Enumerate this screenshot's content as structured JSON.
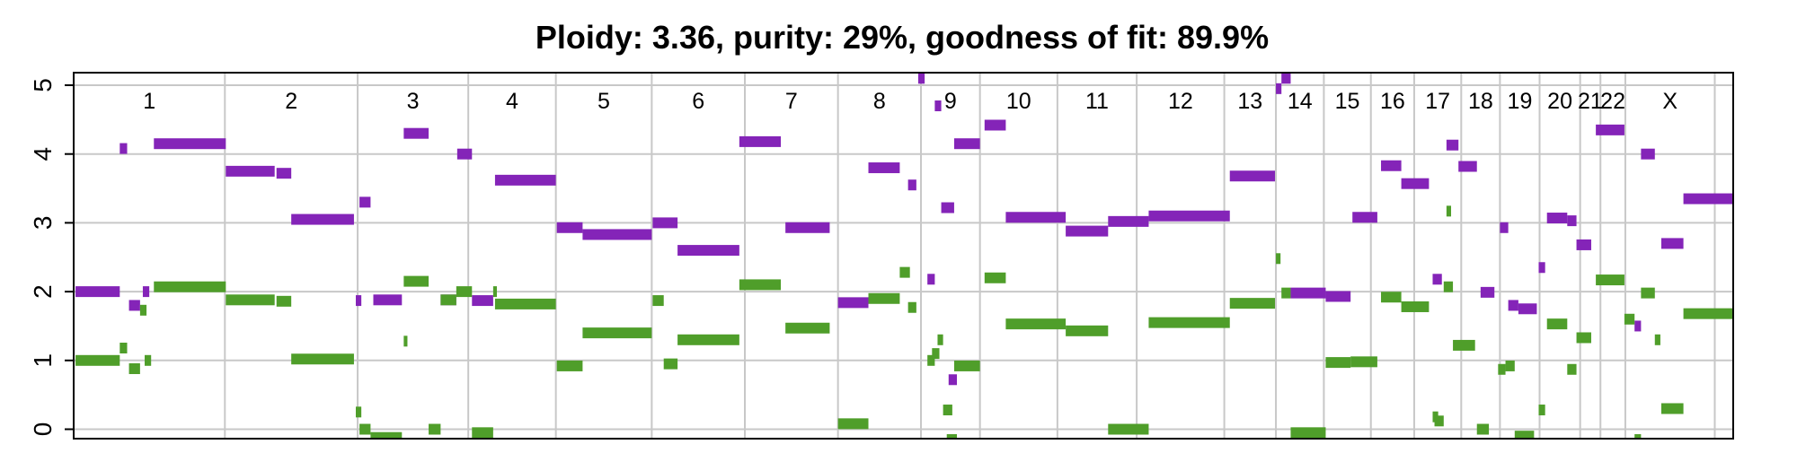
{
  "chart_data": {
    "type": "scatter",
    "title": "Ploidy: 3.36, purity: 29%, goodness of fit: 89.9%",
    "xlabel": "",
    "ylabel": "",
    "ylim": [
      -0.15,
      5.1
    ],
    "yticks": [
      "0",
      "1",
      "2",
      "3",
      "4",
      "5"
    ],
    "grid": true,
    "legend": "none",
    "colors": {
      "major": "#8424b8",
      "minor": "#4f9e2a",
      "grid": "#c8c8c8",
      "frame": "#000000"
    },
    "chromosomes": [
      {
        "name": "1",
        "start": 0,
        "end": 164
      },
      {
        "name": "2",
        "start": 164,
        "end": 308
      },
      {
        "name": "3",
        "start": 308,
        "end": 428
      },
      {
        "name": "4",
        "start": 428,
        "end": 523
      },
      {
        "name": "5",
        "start": 523,
        "end": 627
      },
      {
        "name": "6",
        "start": 627,
        "end": 728
      },
      {
        "name": "7",
        "start": 728,
        "end": 829
      },
      {
        "name": "8",
        "start": 829,
        "end": 919
      },
      {
        "name": "9",
        "start": 919,
        "end": 983
      },
      {
        "name": "10",
        "start": 983,
        "end": 1067
      },
      {
        "name": "11",
        "start": 1067,
        "end": 1153
      },
      {
        "name": "12",
        "start": 1153,
        "end": 1248
      },
      {
        "name": "13",
        "start": 1248,
        "end": 1304
      },
      {
        "name": "14",
        "start": 1304,
        "end": 1356
      },
      {
        "name": "15",
        "start": 1356,
        "end": 1407
      },
      {
        "name": "16",
        "start": 1407,
        "end": 1454
      },
      {
        "name": "17",
        "start": 1454,
        "end": 1505
      },
      {
        "name": "18",
        "start": 1505,
        "end": 1547
      },
      {
        "name": "19",
        "start": 1547,
        "end": 1590
      },
      {
        "name": "20",
        "start": 1590,
        "end": 1634
      },
      {
        "name": "21",
        "start": 1634,
        "end": 1656
      },
      {
        "name": "22",
        "start": 1656,
        "end": 1683
      },
      {
        "name": "X",
        "start": 1683,
        "end": 1780
      }
    ],
    "series": [
      {
        "name": "",
        "role": "major",
        "segments": [
          [
            2,
            50,
            2.0
          ],
          [
            50,
            58,
            4.08
          ],
          [
            60,
            72,
            1.8
          ],
          [
            75,
            82,
            2.0
          ],
          [
            87,
            165,
            4.15
          ],
          [
            165,
            218,
            3.75
          ],
          [
            220,
            236,
            3.72
          ],
          [
            236,
            304,
            3.05
          ],
          [
            306,
            312,
            1.87
          ],
          [
            310,
            322,
            3.3
          ],
          [
            325,
            356,
            1.88
          ],
          [
            358,
            385,
            4.3
          ],
          [
            398,
            415,
            1.88
          ],
          [
            416,
            432,
            4.0
          ],
          [
            432,
            455,
            1.87
          ],
          [
            457,
            523,
            3.62
          ],
          [
            524,
            552,
            2.93
          ],
          [
            552,
            627,
            2.83
          ],
          [
            628,
            655,
            3.0
          ],
          [
            655,
            722,
            2.6
          ],
          [
            722,
            767,
            4.18
          ],
          [
            772,
            820,
            2.93
          ],
          [
            829,
            862,
            1.84
          ],
          [
            862,
            896,
            3.8
          ],
          [
            905,
            914,
            3.55
          ],
          [
            916,
            923,
            5.1
          ],
          [
            926,
            934,
            2.18
          ],
          [
            934,
            941,
            4.7
          ],
          [
            941,
            955,
            3.22
          ],
          [
            949,
            958,
            0.72
          ],
          [
            955,
            983,
            4.15
          ],
          [
            988,
            1011,
            4.42
          ],
          [
            1011,
            1076,
            3.08
          ],
          [
            1076,
            1122,
            2.88
          ],
          [
            1122,
            1166,
            3.02
          ],
          [
            1166,
            1254,
            3.1
          ],
          [
            1254,
            1303,
            3.68
          ],
          [
            1304,
            1310,
            4.95
          ],
          [
            1310,
            1320,
            5.1
          ],
          [
            1320,
            1358,
            1.98
          ],
          [
            1358,
            1385,
            1.93
          ],
          [
            1387,
            1414,
            3.08
          ],
          [
            1418,
            1440,
            3.83
          ],
          [
            1440,
            1470,
            3.57
          ],
          [
            1474,
            1484,
            2.18
          ],
          [
            1489,
            1502,
            4.13
          ],
          [
            1502,
            1522,
            3.82
          ],
          [
            1526,
            1541,
            1.99
          ],
          [
            1547,
            1556,
            2.93
          ],
          [
            1556,
            1567,
            1.8
          ],
          [
            1567,
            1587,
            1.75
          ],
          [
            1589,
            1596,
            2.35
          ],
          [
            1598,
            1620,
            3.07
          ],
          [
            1620,
            1630,
            3.03
          ],
          [
            1630,
            1646,
            2.68
          ],
          [
            1651,
            1682,
            4.35
          ],
          [
            1693,
            1700,
            1.5
          ],
          [
            1700,
            1715,
            4.0
          ],
          [
            1722,
            1746,
            2.7
          ],
          [
            1746,
            1799,
            3.35
          ]
        ]
      },
      {
        "name": "",
        "role": "minor",
        "segments": [
          [
            2,
            50,
            1.0
          ],
          [
            50,
            58,
            1.18
          ],
          [
            60,
            72,
            0.88
          ],
          [
            72,
            79,
            1.73
          ],
          [
            77,
            84,
            1.0
          ],
          [
            87,
            165,
            2.07
          ],
          [
            165,
            218,
            1.88
          ],
          [
            220,
            236,
            1.86
          ],
          [
            236,
            304,
            1.02
          ],
          [
            306,
            312,
            0.25
          ],
          [
            310,
            322,
            0.0
          ],
          [
            322,
            356,
            -0.12
          ],
          [
            358,
            362,
            1.28
          ],
          [
            358,
            385,
            2.15
          ],
          [
            385,
            398,
            0.0
          ],
          [
            398,
            415,
            1.88
          ],
          [
            415,
            432,
            2.0
          ],
          [
            432,
            455,
            -0.05
          ],
          [
            455,
            459,
            2.0
          ],
          [
            457,
            523,
            1.82
          ],
          [
            524,
            552,
            0.92
          ],
          [
            552,
            627,
            1.4
          ],
          [
            628,
            640,
            1.87
          ],
          [
            640,
            655,
            0.95
          ],
          [
            655,
            722,
            1.3
          ],
          [
            722,
            767,
            2.1
          ],
          [
            772,
            820,
            1.47
          ],
          [
            829,
            862,
            0.08
          ],
          [
            862,
            896,
            1.9
          ],
          [
            896,
            907,
            2.28
          ],
          [
            905,
            914,
            1.77
          ],
          [
            926,
            934,
            1.0
          ],
          [
            931,
            939,
            1.1
          ],
          [
            937,
            943,
            1.3
          ],
          [
            943,
            953,
            0.28
          ],
          [
            955,
            983,
            0.92
          ],
          [
            947,
            958,
            -0.15
          ],
          [
            988,
            1011,
            2.2
          ],
          [
            1011,
            1076,
            1.53
          ],
          [
            1076,
            1122,
            1.43
          ],
          [
            1122,
            1166,
            0.0
          ],
          [
            1166,
            1254,
            1.55
          ],
          [
            1254,
            1303,
            1.83
          ],
          [
            1304,
            1309,
            2.48
          ],
          [
            1310,
            1320,
            1.98
          ],
          [
            1320,
            1358,
            -0.05
          ],
          [
            1358,
            1385,
            0.97
          ],
          [
            1385,
            1414,
            0.98
          ],
          [
            1418,
            1440,
            1.92
          ],
          [
            1440,
            1470,
            1.78
          ],
          [
            1474,
            1480,
            0.18
          ],
          [
            1476,
            1486,
            0.12
          ],
          [
            1489,
            1494,
            3.17
          ],
          [
            1486,
            1496,
            2.07
          ],
          [
            1496,
            1520,
            1.22
          ],
          [
            1522,
            1535,
            0.0
          ],
          [
            1545,
            1553,
            0.87
          ],
          [
            1553,
            1563,
            0.92
          ],
          [
            1563,
            1584,
            -0.1
          ],
          [
            1589,
            1596,
            0.28
          ],
          [
            1598,
            1620,
            1.53
          ],
          [
            1620,
            1630,
            0.87
          ],
          [
            1630,
            1646,
            1.33
          ],
          [
            1651,
            1682,
            2.17
          ],
          [
            1682,
            1693,
            1.6
          ],
          [
            1693,
            1700,
            -0.15
          ],
          [
            1700,
            1715,
            1.98
          ],
          [
            1715,
            1721,
            1.3
          ],
          [
            1722,
            1746,
            0.3
          ],
          [
            1746,
            1799,
            1.68
          ]
        ]
      }
    ]
  }
}
